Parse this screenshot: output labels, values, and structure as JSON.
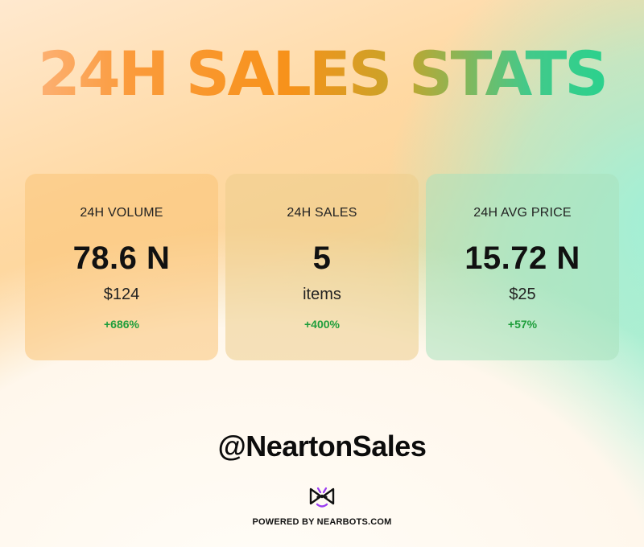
{
  "title": "24H SALES STATS",
  "cards": [
    {
      "label": "24H VOLUME",
      "value": "78.6 N",
      "sub": "$124",
      "change": "+686%"
    },
    {
      "label": "24H SALES",
      "value": "5",
      "sub": "items",
      "change": "+400%"
    },
    {
      "label": "24H AVG PRICE",
      "value": "15.72 N",
      "sub": "$25",
      "change": "+57%"
    }
  ],
  "handle": "@NeartonSales",
  "footer": {
    "logo_icon": "nearbots-logo-icon",
    "powered_by": "POWERED BY NEARBOTS.COM"
  },
  "colors": {
    "change_positive": "#1f9e3c",
    "logo_purple": "#9b3df2"
  }
}
